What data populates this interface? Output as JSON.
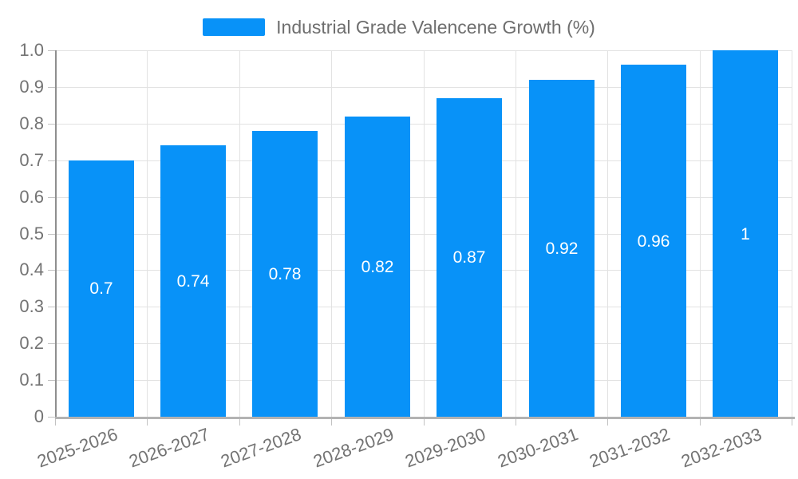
{
  "legend": {
    "label": "Industrial Grade Valencene Growth (%)"
  },
  "chart_data": {
    "type": "bar",
    "title": "Industrial Grade Valencene Growth (%)",
    "categories": [
      "2025-2026",
      "2026-2027",
      "2027-2028",
      "2028-2029",
      "2029-2030",
      "2030-2031",
      "2031-2032",
      "2032-2033"
    ],
    "values": [
      0.7,
      0.74,
      0.78,
      0.82,
      0.87,
      0.92,
      0.96,
      1
    ],
    "value_labels": [
      "0.7",
      "0.74",
      "0.78",
      "0.82",
      "0.87",
      "0.92",
      "0.96",
      "1"
    ],
    "xlabel": "",
    "ylabel": "",
    "ylim": [
      0,
      1
    ],
    "yticks": [
      0,
      0.1,
      0.2,
      0.3,
      0.4,
      0.5,
      0.6,
      0.7,
      0.8,
      0.9,
      1
    ],
    "ytick_labels": [
      "0",
      "0.1",
      "0.2",
      "0.3",
      "0.4",
      "0.5",
      "0.6",
      "0.7",
      "0.8",
      "0.9",
      "1.0"
    ],
    "grid": true,
    "legend_position": "top",
    "colors": {
      "bar": "#0892f8",
      "bar_label": "#ffffff",
      "grid_line": "#e2e2e2",
      "y_axis_line": "#8f8f8f",
      "x_axis_line": "#b3b3b3",
      "tick": "#c2c2c2",
      "axis_text": "#737373",
      "legend_text": "#6e6e6e"
    }
  }
}
